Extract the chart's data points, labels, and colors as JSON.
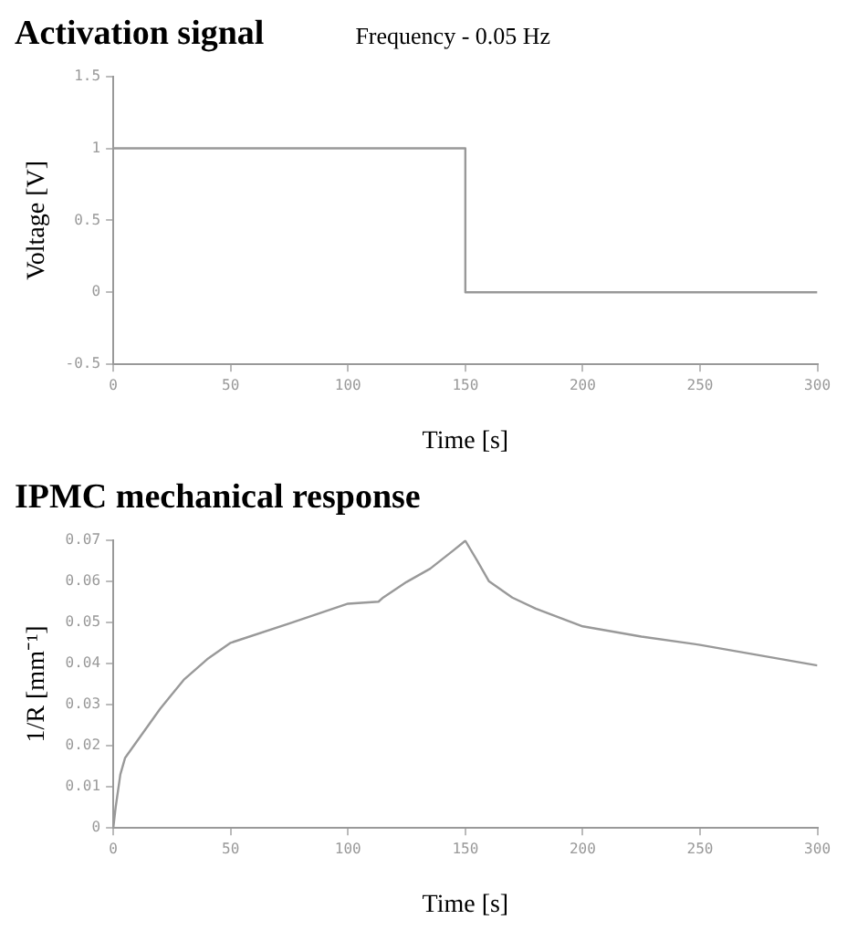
{
  "chart_data": [
    {
      "type": "step",
      "title": "Activation signal",
      "subtitle": "Frequency - 0.05 Hz",
      "xlabel": "Time [s]",
      "ylabel": "Voltage [V]",
      "x": [
        0,
        150,
        300
      ],
      "values": [
        1,
        0,
        0
      ],
      "color": "#999999",
      "xlim": [
        0,
        300
      ],
      "xticks": [
        0,
        50,
        100,
        150,
        200,
        250,
        300
      ],
      "ylim": [
        -0.5,
        1.5
      ],
      "yticks": [
        -0.5,
        0,
        0.5,
        1,
        1.5
      ],
      "grid": false,
      "legend": false
    },
    {
      "type": "line",
      "title": "IPMC mechanical response",
      "xlabel": "Time [s]",
      "ylabel": "1/R [mm⁻¹]",
      "x": [
        0,
        1,
        3,
        5,
        10,
        20,
        30,
        40,
        50,
        75,
        100,
        113,
        115,
        125,
        135,
        145,
        150,
        155,
        160,
        170,
        180,
        200,
        225,
        250,
        275,
        300
      ],
      "values": [
        0,
        0.005,
        0.013,
        0.017,
        0.021,
        0.029,
        0.036,
        0.041,
        0.045,
        0.0497,
        0.0545,
        0.055,
        0.056,
        0.0598,
        0.063,
        0.0675,
        0.0698,
        0.065,
        0.06,
        0.056,
        0.0533,
        0.049,
        0.0465,
        0.0445,
        0.042,
        0.0395
      ],
      "color": "#999999",
      "xlim": [
        0,
        300
      ],
      "xticks": [
        0,
        50,
        100,
        150,
        200,
        250,
        300
      ],
      "ylim": [
        0,
        0.07
      ],
      "yticks": [
        0,
        0.01,
        0.02,
        0.03,
        0.04,
        0.05,
        0.06,
        0.07
      ],
      "grid": false,
      "legend": false
    }
  ]
}
